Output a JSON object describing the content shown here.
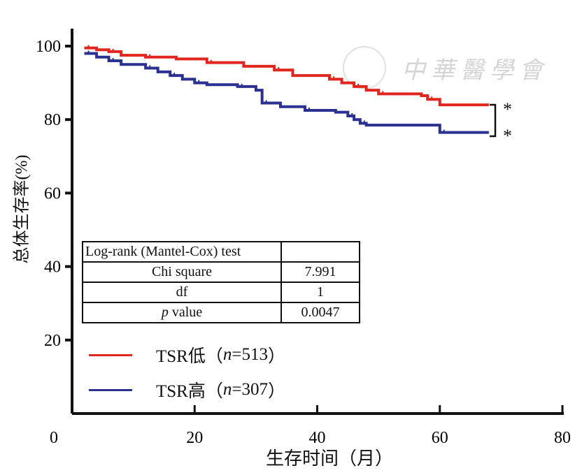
{
  "chart_data": {
    "type": "line",
    "subtype": "kaplan-meier-step",
    "xlabel": "生存时间（月）",
    "ylabel": "总体生存率(%)",
    "xlim": [
      0,
      80
    ],
    "ylim": [
      0,
      100
    ],
    "xticks": [
      "0",
      "20",
      "40",
      "60",
      "80"
    ],
    "yticks": [
      "20",
      "40",
      "60",
      "80",
      "100"
    ],
    "grid": false,
    "series": [
      {
        "name": "TSR低",
        "n_label": "n",
        "n_value": "=513",
        "color": "#e0261f",
        "points": [
          [
            2,
            99.5
          ],
          [
            4,
            99
          ],
          [
            6,
            98.5
          ],
          [
            8,
            97.5
          ],
          [
            12,
            97
          ],
          [
            17,
            96.5
          ],
          [
            22,
            95.5
          ],
          [
            28,
            94.5
          ],
          [
            33,
            93.5
          ],
          [
            36,
            92
          ],
          [
            42,
            91
          ],
          [
            44,
            90
          ],
          [
            46,
            89
          ],
          [
            48,
            88
          ],
          [
            50,
            87
          ],
          [
            57,
            86.5
          ],
          [
            58,
            85.5
          ],
          [
            60,
            84
          ],
          [
            68,
            84
          ]
        ]
      },
      {
        "name": "TSR高",
        "n_label": "n",
        "n_value": "=307",
        "color": "#2b3191",
        "points": [
          [
            2,
            98
          ],
          [
            4,
            97
          ],
          [
            6,
            96
          ],
          [
            8,
            95
          ],
          [
            12,
            94
          ],
          [
            14,
            93
          ],
          [
            16,
            92
          ],
          [
            18,
            91
          ],
          [
            20,
            90
          ],
          [
            22,
            89.5
          ],
          [
            27,
            89
          ],
          [
            30,
            88
          ],
          [
            31,
            84.5
          ],
          [
            34,
            83.5
          ],
          [
            38,
            82.5
          ],
          [
            43,
            82
          ],
          [
            45,
            81
          ],
          [
            46,
            80
          ],
          [
            47,
            79
          ],
          [
            48,
            78.5
          ],
          [
            60,
            76.5
          ],
          [
            68,
            76.5
          ]
        ]
      }
    ],
    "significance_marks": [
      "*",
      "*"
    ],
    "stats_table": {
      "header": "Log-rank (Mantel-Cox) test",
      "rows": [
        {
          "label": "Chi square",
          "value": "7.991"
        },
        {
          "label": "df",
          "value": "1"
        },
        {
          "label_italic": "p",
          "label": " value",
          "value": "0.0047"
        }
      ]
    },
    "legend_placement": "bottom-left"
  },
  "watermark": "中華醫學會"
}
